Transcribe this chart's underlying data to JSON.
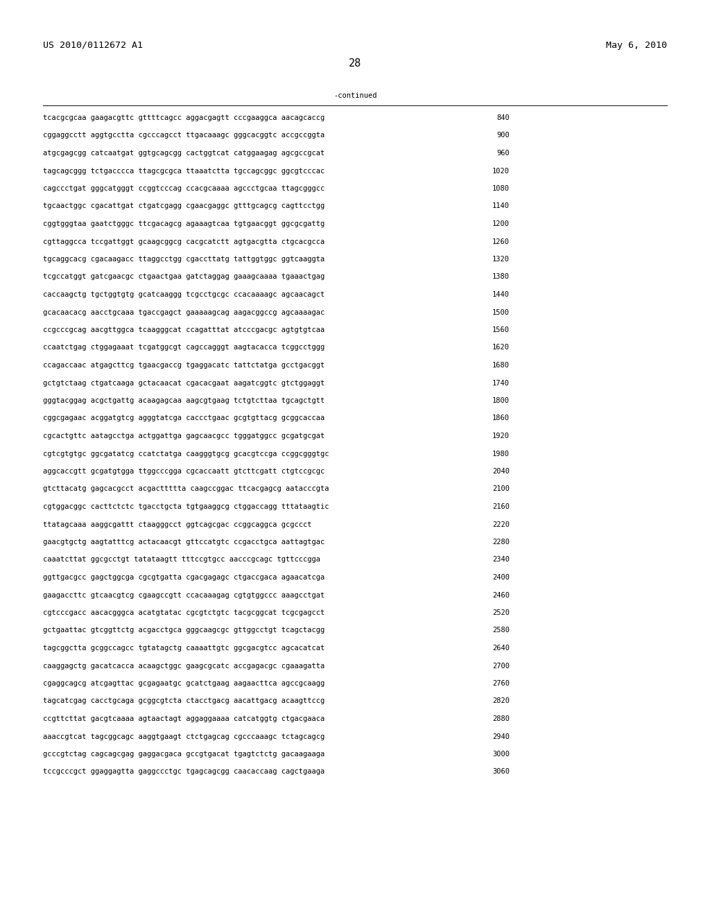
{
  "header_left": "US 2010/0112672 A1",
  "header_right": "May 6, 2010",
  "page_number": "28",
  "continued_label": "-continued",
  "background_color": "#ffffff",
  "text_color": "#000000",
  "font_size": 7.5,
  "header_font_size": 9.5,
  "page_num_font_size": 11,
  "sequences": [
    [
      "tcacgcgcaa gaagacgttc gttttcagcc aggacgagtt cccgaaggca aacagcaccg",
      "840"
    ],
    [
      "cggaggcctt aggtgcctta cgcccagcct ttgacaaagc gggcacggtc accgccggta",
      "900"
    ],
    [
      "atgcgagcgg catcaatgat ggtgcagcgg cactggtcat catggaagag agcgccgcat",
      "960"
    ],
    [
      "tagcagcggg tctgacccca ttagcgcgca ttaaatctta tgccagcggc ggcgtcccac",
      "1020"
    ],
    [
      "cagccctgat gggcatgggt ccggtcccag ccacgcaaaa agccctgcaa ttagcgggcc",
      "1080"
    ],
    [
      "tgcaactggc cgacattgat ctgatcgagg cgaacgaggc gtttgcagcg cagttcctgg",
      "1140"
    ],
    [
      "cggtgggtaa gaatctgggc ttcgacagcg agaaagtcaa tgtgaacggt ggcgcgattg",
      "1200"
    ],
    [
      "cgttaggcca tccgattggt gcaagcggcg cacgcatctt agtgacgtta ctgcacgcca",
      "1260"
    ],
    [
      "tgcaggcacg cgacaagacc ttaggcctgg cgaccttatg tattggtggc ggtcaaggta",
      "1320"
    ],
    [
      "tcgccatggt gatcgaacgc ctgaactgaa gatctaggag gaaagcaaaa tgaaactgag",
      "1380"
    ],
    [
      "caccaagctg tgctggtgtg gcatcaaggg tcgcctgcgc ccacaaaagc agcaacagct",
      "1440"
    ],
    [
      "gcacaacacg aacctgcaaa tgaccgagct gaaaaagcag aagacggccg agcaaaagac",
      "1500"
    ],
    [
      "ccgcccgcag aacgttggca tcaagggcat ccagatttat atcccgacgc agtgtgtcaa",
      "1560"
    ],
    [
      "ccaatctgag ctggagaaat tcgatggcgt cagccagggt aagtacacca tcggcctggg",
      "1620"
    ],
    [
      "ccagaccaac atgagcttcg tgaacgaccg tgaggacatc tattctatga gcctgacggt",
      "1680"
    ],
    [
      "gctgtctaag ctgatcaaga gctacaacat cgacacgaat aagatcggtc gtctggaggt",
      "1740"
    ],
    [
      "gggtacggag acgctgattg acaagagcaa aagcgtgaag tctgtcttaa tgcagctgtt",
      "1800"
    ],
    [
      "cggcgagaac acggatgtcg agggtatcga caccctgaac gcgtgttacg gcggcaccaa",
      "1860"
    ],
    [
      "cgcactgttc aatagcctga actggattga gagcaacgcc tgggatggcc gcgatgcgat",
      "1920"
    ],
    [
      "cgtcgtgtgc ggcgatatcg ccatctatga caagggtgcg gcacgtccga ccggcgggtgc",
      "1980"
    ],
    [
      "aggcaccgtt gcgatgtgga ttggcccgga cgcaccaatt gtcttcgatt ctgtccgcgc",
      "2040"
    ],
    [
      "gtcttacatg gagcacgcct acgacttttta caagccggac ttcacgagcg aatacccgta",
      "2100"
    ],
    [
      "cgtggacggc cacttctctc tgacctgcta tgtgaaggcg ctggaccagg tttataagtic",
      "2160"
    ],
    [
      "ttatagcaaa aaggcgattt ctaagggcct ggtcagcgac ccggcaggca gcgccct",
      "2220"
    ],
    [
      "gaacgtgctg aagtatttcg actacaacgt gttccatgtc ccgacctgca aattagtgac",
      "2280"
    ],
    [
      "caaatcttat ggcgcctgt tatataagtt tttccgtgcc aacccgcagc tgttcccgga",
      "2340"
    ],
    [
      "ggttgacgcc gagctggcga cgcgtgatta cgacgagagc ctgaccgaca agaacatcga",
      "2400"
    ],
    [
      "gaagaccttc gtcaacgtcg cgaagccgtt ccacaaagag cgtgtggccc aaagcctgat",
      "2460"
    ],
    [
      "cgtcccgacc aacacgggca acatgtatac cgcgtctgtc tacgcggcat tcgcgagcct",
      "2520"
    ],
    [
      "gctgaattac gtcggttctg acgacctgca gggcaagcgc gttggcctgt tcagctacgg",
      "2580"
    ],
    [
      "tagcggctta gcggccagcc tgtatagctg caaaattgtc ggcgacgtcc agcacatcat",
      "2640"
    ],
    [
      "caaggagctg gacatcacca acaagctggc gaagcgcatc accgagacgc cgaaagatta",
      "2700"
    ],
    [
      "cgaggcagcg atcgagttac gcgagaatgc gcatctgaag aagaacttca agccgcaagg",
      "2760"
    ],
    [
      "tagcatcgag cacctgcaga gcggcgtcta ctacctgacg aacattgacg acaagttccg",
      "2820"
    ],
    [
      "ccgttcttat gacgtcaaaa agtaactagt aggaggaaaa catcatggtg ctgacgaaca",
      "2880"
    ],
    [
      "aaaccgtcat tagcggcagc aaggtgaagt ctctgagcag cgcccaaagc tctagcagcg",
      "2940"
    ],
    [
      "gcccgtctag cagcagcgag gaggacgaca gccgtgacat tgagtctctg gacaagaaga",
      "3000"
    ],
    [
      "tccgcccgct ggaggagtta gaggccctgc tgagcagcgg caacaccaag cagctgaaga",
      "3060"
    ]
  ]
}
